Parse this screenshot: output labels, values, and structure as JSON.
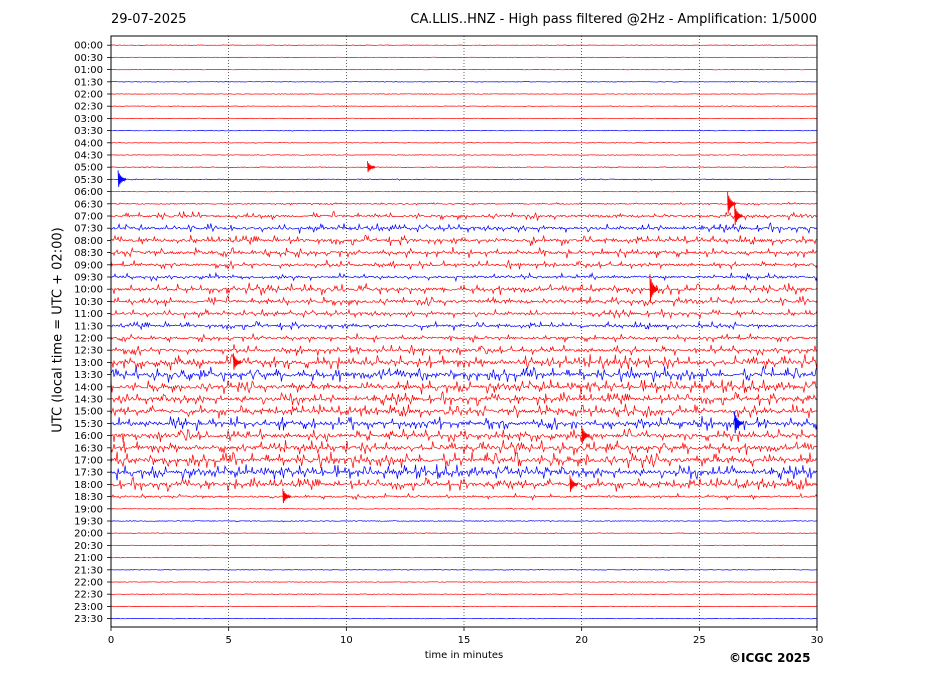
{
  "header": {
    "date": "29-07-2025",
    "title": "CA.LLIS..HNZ - High pass filtered @2Hz - Amplification: 1/5000"
  },
  "footer": {
    "copyright": "©ICGC 2025"
  },
  "colors": {
    "trace_a": "#ff0000",
    "trace_b": "#0000ff",
    "axes": "#000000",
    "grid": "#000000"
  },
  "chart_data": {
    "type": "line",
    "title": "CA.LLIS..HNZ - High pass filtered @2Hz - Amplification: 1/5000",
    "xlabel": "time in minutes",
    "ylabel": "UTC (local time = UTC + 02:00)",
    "xlim": [
      0,
      30
    ],
    "x_ticks": [
      0,
      5,
      10,
      15,
      20,
      25,
      30
    ],
    "vertical_grid": "dotted at 5, 10, 15, 20, 25",
    "row_colors_alternate": [
      "red",
      "red",
      "red",
      "blue"
    ],
    "rows": [
      "00:00",
      "00:30",
      "01:00",
      "01:30",
      "02:00",
      "02:30",
      "03:00",
      "03:30",
      "04:00",
      "04:30",
      "05:00",
      "05:30",
      "06:00",
      "06:30",
      "07:00",
      "07:30",
      "08:00",
      "08:30",
      "09:00",
      "09:30",
      "10:00",
      "10:30",
      "11:00",
      "11:30",
      "12:00",
      "12:30",
      "13:00",
      "13:30",
      "14:00",
      "14:30",
      "15:00",
      "15:30",
      "16:00",
      "16:30",
      "17:00",
      "17:30",
      "18:00",
      "18:30",
      "19:00",
      "19:30",
      "20:00",
      "20:30",
      "21:00",
      "21:30",
      "22:00",
      "22:30",
      "23:00",
      "23:30"
    ],
    "row_activity": [
      0.01,
      0.01,
      0.01,
      0.01,
      0.01,
      0.01,
      0.03,
      0.04,
      0.03,
      0.03,
      0.06,
      0.08,
      0.03,
      0.15,
      0.45,
      0.5,
      0.55,
      0.55,
      0.45,
      0.4,
      0.6,
      0.55,
      0.45,
      0.45,
      0.45,
      0.55,
      0.8,
      0.8,
      0.75,
      0.7,
      0.7,
      0.75,
      0.7,
      0.75,
      0.85,
      0.8,
      0.7,
      0.3,
      0.05,
      0.08,
      0.02,
      0.02,
      0.02,
      0.02,
      0.02,
      0.04,
      0.02,
      0.02
    ],
    "events": [
      {
        "row": "05:30",
        "minute": 0.3,
        "amplitude": 0.9
      },
      {
        "row": "05:00",
        "minute": 10.9,
        "amplitude": 0.6
      },
      {
        "row": "06:30",
        "minute": 26.2,
        "amplitude": 1.2
      },
      {
        "row": "07:00",
        "minute": 26.5,
        "amplitude": 1.1
      },
      {
        "row": "10:00",
        "minute": 22.9,
        "amplitude": 1.5
      },
      {
        "row": "13:00",
        "minute": 5.2,
        "amplitude": 0.9
      },
      {
        "row": "15:30",
        "minute": 26.5,
        "amplitude": 1.2
      },
      {
        "row": "16:00",
        "minute": 20.0,
        "amplitude": 1.0
      },
      {
        "row": "18:00",
        "minute": 19.5,
        "amplitude": 0.9
      },
      {
        "row": "18:30",
        "minute": 7.3,
        "amplitude": 0.8
      }
    ]
  }
}
